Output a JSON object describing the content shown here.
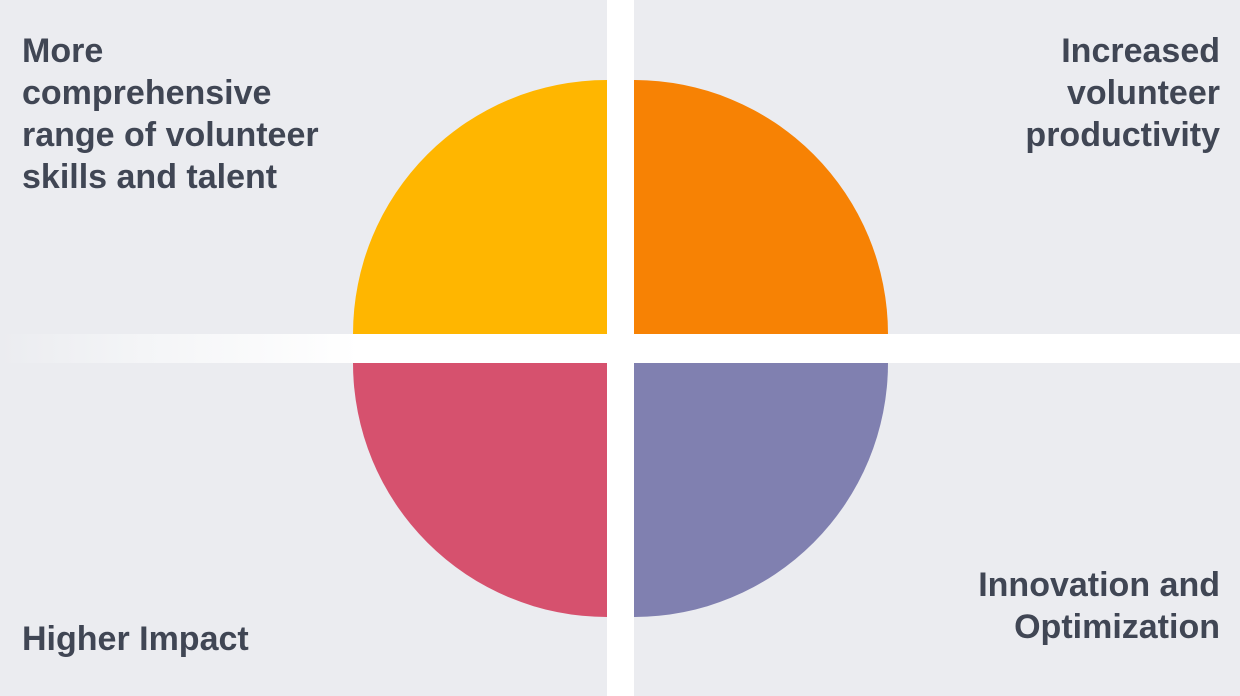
{
  "quadrants": {
    "top_left": {
      "label": "More comprehensive range of volunteer skills and talent",
      "color": "#ffb600"
    },
    "top_right": {
      "label": "Increased volunteer productivity",
      "color": "#f78204"
    },
    "bottom_left": {
      "label": "Higher Impact",
      "color": "#d6516e"
    },
    "bottom_right": {
      "label": "Innovation and Optimization",
      "color": "#8080b0"
    }
  },
  "colors": {
    "panel_background": "#ebecf0",
    "divider": "#ffffff",
    "label_text": "#404654"
  }
}
